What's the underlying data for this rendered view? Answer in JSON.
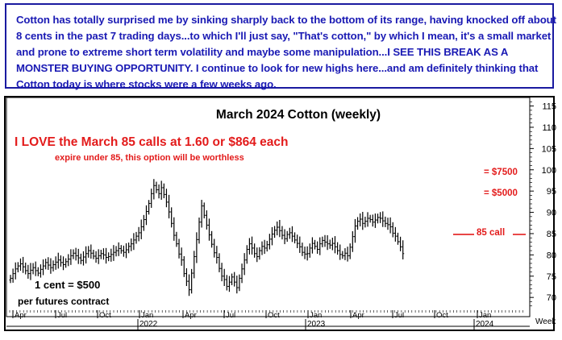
{
  "commentary": "Cotton has totally surprised me by sinking sharply back to the bottom of its range, having knocked off about 8 cents in the past 7 trading days...to which I'll just say, \"That's cotton,\" by which I mean, it's a small market and prone to extreme short term volatility and maybe some manipulation...I SEE THIS BREAK AS A MONSTER BUYING OPPORTUNITY. I continue to look for new highs here...and am definitely thinking that Cotton today is where stocks were a few weeks ago.",
  "colors": {
    "commentary_text": "#1a1ab4",
    "commentary_border": "#1a1aa0",
    "annotation_red": "#e31b1b",
    "bars": "#000000"
  },
  "chart_data": {
    "type": "ohlc",
    "title": "March 2024 Cotton (weekly)",
    "annotations": {
      "headline": "I LOVE the March 85 calls at 1.60 or $864 each",
      "subline": "expire under 85, this option will be worthless",
      "tick_value": "1 cent = $500",
      "tick_value_sub": "per futures contract",
      "level_7500": "= $7500",
      "level_5000": "= $5000",
      "call_label": "85 call"
    },
    "marked_levels": {
      "call_strike": 85,
      "value_5000": 95,
      "value_7500": 100
    },
    "y_axis": {
      "min": 67,
      "max": 117,
      "ticks": [
        70,
        75,
        80,
        85,
        90,
        95,
        100,
        105,
        110,
        115
      ]
    },
    "x_axis": {
      "unit_label": "Week",
      "month_labels": [
        "Apr",
        "Jul",
        "Oct",
        "Jan",
        "Apr",
        "Jul",
        "Oct",
        "Jan",
        "Apr",
        "Jul",
        "Oct",
        "Jan"
      ],
      "year_labels": [
        "2022",
        "2023",
        "2024"
      ]
    },
    "closes": [
      74.5,
      75.6,
      76.7,
      77.4,
      77.9,
      77.2,
      76.3,
      75.6,
      76.4,
      77.0,
      76.3,
      75.7,
      76.6,
      77.4,
      78.2,
      77.6,
      77.0,
      77.7,
      78.3,
      78.8,
      78.2,
      77.7,
      78.4,
      79.0,
      79.8,
      80.4,
      79.8,
      79.3,
      78.7,
      79.5,
      80.3,
      81.0,
      80.4,
      79.7,
      79.2,
      79.8,
      80.3,
      80.0,
      79.4,
      79.6,
      80.1,
      80.6,
      81.0,
      81.5,
      81.0,
      80.6,
      81.2,
      82.0,
      82.6,
      83.5,
      84.4,
      85.2,
      86.6,
      88.3,
      90.2,
      92.1,
      94.4,
      96.3,
      95.3,
      94.4,
      95.8,
      94.2,
      92.4,
      90.1,
      87.4,
      84.6,
      82.6,
      80.2,
      78.8,
      75.6,
      73.8,
      71.8,
      75.7,
      79.6,
      83.6,
      87.7,
      91.5,
      89.3,
      87.0,
      84.7,
      82.5,
      80.5,
      79.4,
      76.8,
      75.0,
      74.2,
      72.6,
      73.6,
      74.8,
      73.6,
      72.3,
      74.5,
      76.7,
      78.8,
      81.3,
      82.6,
      81.6,
      80.3,
      79.6,
      81.0,
      82.0,
      81.6,
      82.4,
      83.7,
      84.9,
      85.8,
      86.5,
      85.7,
      84.6,
      83.8,
      84.8,
      85.2,
      84.4,
      83.5,
      82.7,
      81.9,
      80.6,
      80.2,
      80.3,
      81.6,
      82.7,
      82.0,
      81.3,
      82.6,
      83.4,
      83.0,
      82.6,
      82.3,
      82.7,
      81.9,
      81.0,
      80.1,
      79.8,
      80.4,
      79.8,
      81.8,
      84.3,
      86.8,
      87.9,
      88.4,
      87.4,
      87.9,
      88.6,
      88.3,
      87.7,
      88.2,
      88.8,
      88.6,
      88.0,
      87.4,
      87.1,
      86.6,
      85.1,
      84.4,
      83.1,
      81.9,
      80.3
    ]
  }
}
